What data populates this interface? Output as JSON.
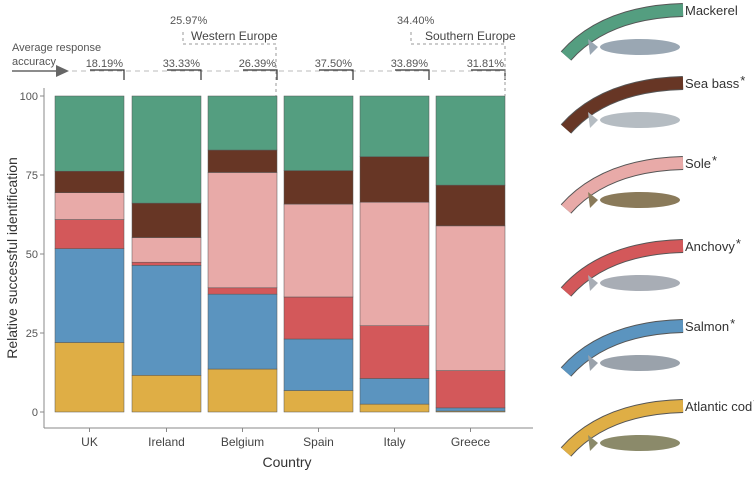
{
  "chart_data": {
    "type": "bar",
    "stacked": true,
    "xlabel": "Country",
    "ylabel": "Relative successful identification",
    "ylim": [
      0,
      100
    ],
    "yticks": [
      "0",
      "25",
      "50",
      "75",
      "100"
    ],
    "grid": false,
    "categories": [
      "UK",
      "Ireland",
      "Belgium",
      "Spain",
      "Italy",
      "Greece"
    ],
    "series": [
      {
        "name": "Atlantic cod",
        "starred": true,
        "color": "#dfae45",
        "values": [
          22.0,
          11.6,
          13.6,
          6.8,
          2.5,
          0.3
        ]
      },
      {
        "name": "Salmon",
        "starred": true,
        "color": "#5b94bf",
        "values": [
          29.7,
          34.8,
          23.7,
          16.3,
          8.1,
          1.0
        ]
      },
      {
        "name": "Anchovy",
        "starred": true,
        "color": "#d3585a",
        "values": [
          9.2,
          1.0,
          2.0,
          13.3,
          16.7,
          11.8
        ]
      },
      {
        "name": "Sole",
        "starred": true,
        "color": "#e8aaa8",
        "values": [
          8.5,
          7.8,
          36.5,
          29.4,
          39.1,
          45.8
        ]
      },
      {
        "name": "Sea bass",
        "starred": true,
        "color": "#673625",
        "values": [
          6.8,
          10.9,
          7.1,
          10.6,
          14.4,
          12.9
        ]
      },
      {
        "name": "Mackerel",
        "starred": false,
        "color": "#549e80",
        "values": [
          23.8,
          33.9,
          17.1,
          23.6,
          19.2,
          28.2
        ]
      }
    ],
    "annotations": {
      "accuracy_label": "Average response accuracy",
      "accuracy_label_line1": "Average response",
      "accuracy_label_line2": "accuracy",
      "country_accuracy": [
        "18.19%",
        "33.33%",
        "26.39%",
        "37.50%",
        "33.89%",
        "31.81%"
      ],
      "regions": [
        {
          "name": "Western Europe",
          "accuracy": "25.97%"
        },
        {
          "name": "Southern Europe",
          "accuracy": "34.40%"
        }
      ]
    },
    "legend_placement": "right",
    "star_symbol": "*"
  }
}
